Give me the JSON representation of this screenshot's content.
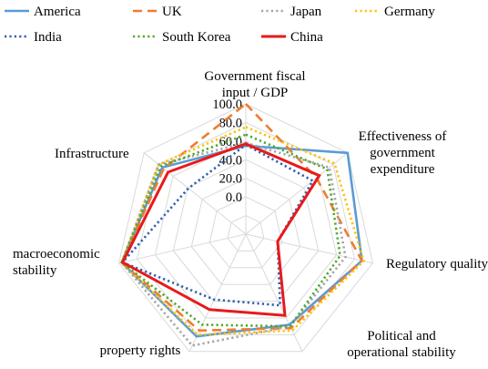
{
  "chart_data": {
    "type": "radar",
    "axes": [
      {
        "label_lines": [
          "Government fiscal",
          "input / GDP"
        ]
      },
      {
        "label_lines": [
          "Effectiveness of",
          "government",
          "expenditure"
        ]
      },
      {
        "label_lines": [
          "Regulatory quality"
        ]
      },
      {
        "label_lines": [
          "Political and",
          "operational stability"
        ]
      },
      {
        "label_lines": [
          "property rights"
        ]
      },
      {
        "label_lines": [
          "macroeconomic",
          "stability"
        ]
      },
      {
        "label_lines": [
          "Infrastructure"
        ]
      }
    ],
    "radial_ticks": [
      "0.0",
      "20.0",
      "40.0",
      "60.0",
      "80.0",
      "100.0"
    ],
    "rmin": -40,
    "rmax": 100,
    "series": [
      {
        "name": "America",
        "color": "#5B9BD5",
        "dash": "solid",
        "values": [
          55,
          100,
          88,
          68,
          82,
          97,
          75
        ]
      },
      {
        "name": "UK",
        "color": "#ED7D31",
        "dash": "dash",
        "values": [
          100,
          57,
          88,
          72,
          75,
          97,
          73
        ]
      },
      {
        "name": "Japan",
        "color": "#A5A5A5",
        "dash": "dot",
        "values": [
          58,
          75,
          70,
          70,
          93,
          97,
          80
        ]
      },
      {
        "name": "Germany",
        "color": "#FFC000",
        "dash": "dot",
        "values": [
          75,
          82,
          90,
          75,
          80,
          97,
          80
        ]
      },
      {
        "name": "India",
        "color": "#2E5FAF",
        "dash": "dot",
        "values": [
          56,
          52,
          -5,
          45,
          38,
          96,
          39
        ]
      },
      {
        "name": "South Korea",
        "color": "#4EA72E",
        "dash": "dot",
        "values": [
          67,
          72,
          64,
          70,
          68,
          97,
          77
        ]
      },
      {
        "name": "China",
        "color": "#E8191B",
        "dash": "solid",
        "values": [
          57,
          61,
          -5,
          57,
          50,
          96,
          67
        ]
      }
    ],
    "grid": true,
    "legend_position": "top"
  }
}
